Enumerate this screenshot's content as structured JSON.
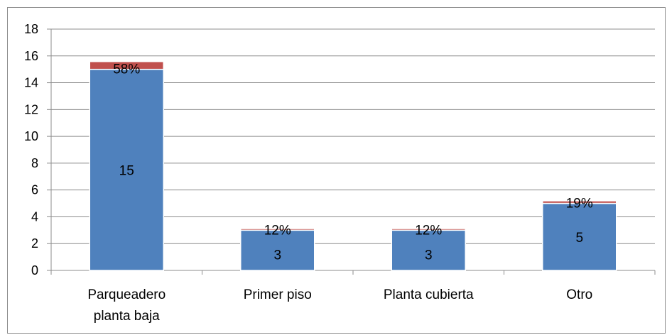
{
  "chart_data": {
    "type": "bar",
    "stacked": true,
    "categories": [
      [
        "Parqueadero",
        "planta baja"
      ],
      [
        "Primer piso"
      ],
      [
        "Planta cubierta"
      ],
      [
        "Otro"
      ]
    ],
    "series": [
      {
        "values": [
          15,
          3,
          3,
          5
        ],
        "color": "#4f81bd",
        "labels": [
          "15",
          "3",
          "3",
          "5"
        ]
      },
      {
        "values": [
          0.58,
          0.12,
          0.12,
          0.19
        ],
        "color": "#c0504d",
        "labels": [
          "58%",
          "12%",
          "12%",
          "19%"
        ]
      }
    ],
    "ylim": [
      0,
      18
    ],
    "yticks": [
      0,
      2,
      4,
      6,
      8,
      10,
      12,
      14,
      16,
      18
    ],
    "grid": true,
    "legend": "none"
  }
}
